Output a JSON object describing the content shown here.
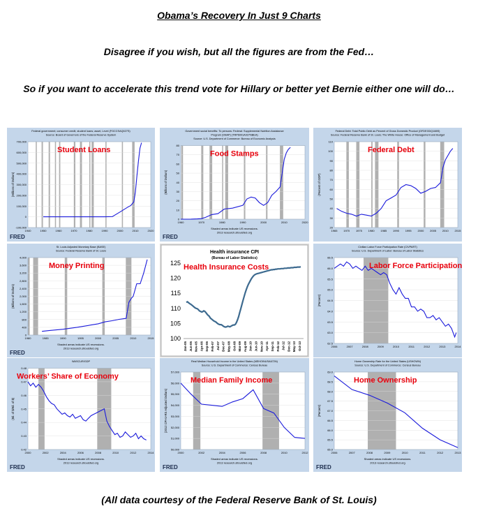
{
  "header": {
    "title": "Obama’s Recovery In Just 9 Charts",
    "line1": "Disagree if you wish, but all the figures are from the Fed…",
    "line2": "So if you want to accelerate this trend vote for Hillary or better yet Bernie either one will  do…"
  },
  "footer": "(All data courtesy of the Federal Reserve Bank of St. Louis)",
  "colors": {
    "line": "#1a1adb",
    "recession": "#b0b0b0",
    "annotation": "#e8000c",
    "panel_bg": "#c4d6ea",
    "plot_bg": "#ffffff",
    "hi_line": "#3d6a8f"
  },
  "chart_data": [
    {
      "type": "line",
      "id": "student-loans",
      "annotation": "Student Loans",
      "source": [
        "Federal government; consumer credit, student loans; asset, Level (FGCCSAQ027S)",
        "Source: Board of Governors of the Federal Reserve System"
      ],
      "ylabel": "(Millions of Dollars)",
      "ylim": [
        -100000,
        700000
      ],
      "yticks": [
        "-100,000",
        "0",
        "100,000",
        "200,000",
        "300,000",
        "400,000",
        "500,000",
        "600,000",
        "700,000"
      ],
      "xlim": [
        1940,
        2020
      ],
      "xticks": [
        "1940",
        "1950",
        "1960",
        "1970",
        "1980",
        "1990",
        "2000",
        "2010",
        "2020"
      ],
      "recessions": [
        [
          1945.1,
          1945.8
        ],
        [
          1948.9,
          1949.8
        ],
        [
          1953.5,
          1954.4
        ],
        [
          1957.6,
          1958.3
        ],
        [
          1960.3,
          1961.1
        ],
        [
          1969.9,
          1970.9
        ],
        [
          1973.9,
          1975.2
        ],
        [
          1980.0,
          1980.5
        ],
        [
          1981.5,
          1982.9
        ],
        [
          1990.5,
          1991.2
        ],
        [
          2001.2,
          2001.9
        ],
        [
          2007.9,
          2009.5
        ]
      ],
      "x": [
        1950,
        1960,
        1970,
        1980,
        1990,
        1995,
        2000,
        2005,
        2007,
        2009,
        2010,
        2011,
        2012,
        2013,
        2014
      ],
      "y": [
        0,
        0,
        0,
        0,
        0,
        2000,
        45000,
        90000,
        105000,
        140000,
        230000,
        380000,
        520000,
        640000,
        690000
      ],
      "footer_logo": "FRED",
      "notes": []
    },
    {
      "type": "line",
      "id": "food-stamps",
      "annotation": "Food Stamps",
      "source": [
        "Government social benefits: To persons: Federal: Supplemental Nutrition Assistance",
        "Program (SNAP) (TRP6001A027NBEA)",
        "Source: U.S. Department of Commerce: Bureau of Economic Analysis"
      ],
      "ylabel": "(Billions of Dollars)",
      "ylim": [
        0,
        80
      ],
      "yticks": [
        "0",
        "10",
        "20",
        "30",
        "40",
        "50",
        "60",
        "70",
        "80"
      ],
      "xlim": [
        1960,
        2020
      ],
      "xticks": [
        "1960",
        "1970",
        "1980",
        "1990",
        "2000",
        "2010",
        "2020"
      ],
      "recessions": [
        [
          1960.3,
          1961.1
        ],
        [
          1969.9,
          1970.9
        ],
        [
          1973.9,
          1975.2
        ],
        [
          1980.0,
          1980.5
        ],
        [
          1981.5,
          1982.9
        ],
        [
          1990.5,
          1991.2
        ],
        [
          2001.2,
          2001.9
        ],
        [
          2007.9,
          2009.5
        ]
      ],
      "x": [
        1960,
        1965,
        1968,
        1970,
        1972,
        1975,
        1978,
        1981,
        1985,
        1990,
        1992,
        1994,
        1996,
        1998,
        2000,
        2002,
        2004,
        2006,
        2008,
        2009,
        2010,
        2011,
        2012,
        2013
      ],
      "y": [
        0,
        0.1,
        0.3,
        0.6,
        2,
        5,
        6,
        11,
        12,
        15,
        22,
        24,
        23,
        18,
        15,
        18,
        26,
        30,
        35,
        50,
        65,
        72,
        76,
        78
      ],
      "footer_logo": "FRED",
      "notes": [
        "Shaded areas indicate US recessions.",
        "2013 research.stlouisfed.org"
      ]
    },
    {
      "type": "line",
      "id": "federal-debt",
      "annotation": "Federal Debt",
      "source": [
        "Federal Debt: Total Public Debt as Percent of Gross Domestic Product (GFDEGDQ188S)",
        "Source: Federal Reserve Bank of St. Louis; The White House: Office of Management and Budget"
      ],
      "ylabel": "(Percent of GDP)",
      "ylim": [
        20,
        110
      ],
      "yticks": [
        "20",
        "30",
        "40",
        "50",
        "60",
        "70",
        "80",
        "90",
        "100",
        "110"
      ],
      "xlim": [
        1965,
        2015
      ],
      "xticks": [
        "1965",
        "1970",
        "1975",
        "1980",
        "1985",
        "1990",
        "1995",
        "2000",
        "2005",
        "2010",
        "2015"
      ],
      "recessions": [
        [
          1969.9,
          1970.9
        ],
        [
          1973.9,
          1975.2
        ],
        [
          1980.0,
          1980.5
        ],
        [
          1981.5,
          1982.9
        ],
        [
          1990.5,
          1991.2
        ],
        [
          2001.2,
          2001.9
        ],
        [
          2007.9,
          2009.5
        ]
      ],
      "x": [
        1966,
        1968,
        1970,
        1972,
        1974,
        1976,
        1978,
        1980,
        1982,
        1984,
        1986,
        1988,
        1990,
        1992,
        1994,
        1996,
        1998,
        2000,
        2002,
        2004,
        2006,
        2008,
        2009,
        2010,
        2012,
        2013
      ],
      "y": [
        40,
        37,
        35,
        34,
        32,
        34,
        33,
        32,
        35,
        40,
        48,
        51,
        54,
        62,
        65,
        64,
        61,
        56,
        58,
        61,
        62,
        67,
        83,
        91,
        100,
        103
      ],
      "footer_logo": "",
      "notes": []
    },
    {
      "type": "line",
      "id": "money-printing",
      "annotation": "Money Printing",
      "source": [
        "St. Louis Adjusted Monetary Base (BASE)",
        "Source: Federal Reserve Bank of St. Louis"
      ],
      "ylabel": "(Billions of Dollars)",
      "ylim": [
        0,
        4000
      ],
      "yticks": [
        "0",
        "400",
        "800",
        "1,200",
        "1,600",
        "2,000",
        "2,400",
        "2,800",
        "3,200",
        "3,600",
        "4,000"
      ],
      "xlim": [
        1980,
        2015
      ],
      "xticks": [
        "1980",
        "1985",
        "1990",
        "1995",
        "2000",
        "2005",
        "2010",
        "2015"
      ],
      "recessions": [
        [
          1980.0,
          1980.5
        ],
        [
          1981.5,
          1982.9
        ],
        [
          1990.5,
          1991.2
        ],
        [
          2001.2,
          2001.9
        ],
        [
          2007.9,
          2009.5
        ]
      ],
      "x": [
        1984,
        1986,
        1990,
        1994,
        1998,
        2000,
        2002,
        2004,
        2006,
        2008,
        2008.8,
        2009.5,
        2010,
        2011,
        2012,
        2013,
        2014
      ],
      "y": [
        190,
        230,
        300,
        400,
        520,
        580,
        680,
        740,
        810,
        860,
        1700,
        1900,
        2000,
        2650,
        2650,
        3200,
        3900
      ],
      "footer_logo": "FRED",
      "notes": [
        "Shaded areas indicate US recessions.",
        "2013 research.stlouisfed.org"
      ]
    },
    {
      "type": "line",
      "id": "health-insurance",
      "annotation": "Health Insurance Costs",
      "chart_title": "Health insurance CPI",
      "chart_subtitle": "(Bureau of Labor Statistics)",
      "ylim": [
        100,
        125
      ],
      "yticks": [
        "100",
        "105",
        "110",
        "115",
        "120",
        "125"
      ],
      "xticks": [
        "Jan-05",
        "Jun-05",
        "Nov-05",
        "Apr-06",
        "Sep-06",
        "Feb-07",
        "Jul-07",
        "Dec-07",
        "May-08",
        "Oct-08",
        "Mar-09",
        "Aug-09",
        "Jan-10",
        "Jun-10",
        "Nov-10",
        "Apr-11",
        "Sep-11",
        "Feb-12",
        "Jul-12",
        "Dec-12",
        "May-13",
        "Oct-13"
      ],
      "x": [
        0,
        1,
        2,
        3,
        4,
        5,
        6,
        7,
        8,
        9,
        10,
        11,
        12,
        13,
        14,
        15,
        16,
        17,
        18,
        19,
        20,
        21,
        22,
        23,
        24,
        25,
        26,
        27,
        28,
        29,
        30,
        31,
        32,
        33,
        34,
        35,
        36,
        37,
        38,
        39,
        40,
        41,
        42,
        43,
        44,
        45,
        46,
        47,
        48,
        49,
        50,
        51,
        52,
        53,
        54,
        55,
        56,
        57,
        58,
        59,
        60,
        61,
        62,
        63,
        64,
        65,
        66,
        67,
        68,
        69,
        70,
        71,
        72,
        73,
        74,
        75,
        76,
        77,
        78,
        79,
        80,
        81,
        82,
        83,
        84,
        85,
        86,
        87,
        88,
        89,
        90,
        91,
        92,
        93,
        94,
        95,
        96,
        97,
        98,
        99,
        100,
        101,
        102,
        103,
        104,
        105
      ],
      "y": [
        112,
        112.2,
        111.9,
        111.6,
        111.4,
        111.1,
        110.8,
        110.5,
        110.2,
        110,
        109.9,
        109.6,
        109.2,
        109,
        108.8,
        108.9,
        109.2,
        109,
        108.6,
        108.1,
        107.7,
        107.4,
        106.8,
        106.5,
        106.2,
        105.9,
        105.7,
        105.5,
        105.2,
        104.9,
        104.7,
        104.6,
        104.6,
        104.4,
        104.1,
        103.9,
        103.8,
        103.9,
        104.1,
        104.0,
        103.9,
        104.1,
        104.3,
        104.5,
        104.5,
        104.7,
        105.3,
        106.2,
        107.3,
        108.6,
        109.9,
        111.3,
        112.6,
        113.9,
        115.1,
        116.2,
        117.2,
        118.0,
        118.7,
        119.4,
        120.0,
        120.5,
        120.9,
        121.2,
        121.4,
        121.5,
        121.6,
        121.7,
        121.8,
        121.9,
        122.0,
        122.1,
        122.2,
        122.3,
        122.4,
        122.5,
        122.6,
        122.7,
        122.8,
        122.8,
        122.9,
        122.9,
        123.0,
        123.0,
        123.1,
        123.1,
        123.1,
        123.2,
        123.2,
        123.2,
        123.3,
        123.3,
        123.3,
        123.4,
        123.4,
        123.4,
        123.5,
        123.5,
        123.5,
        123.6,
        123.6,
        123.6,
        123.7,
        123.7,
        123.7,
        123.8
      ],
      "footer_logo": "",
      "notes": []
    },
    {
      "type": "line",
      "id": "labor-force",
      "annotation": "Labor Force Participation",
      "source": [
        "Civilian Labor Force Participation Rate (CIVPART)",
        "Source: U.S. Department of Labor: Bureau of Labor Statistics"
      ],
      "ylabel": "(Percent)",
      "ylim": [
        62.5,
        66.5
      ],
      "yticks": [
        "62.5",
        "63.0",
        "63.5",
        "64.0",
        "64.5",
        "65.0",
        "65.5",
        "66.0",
        "66.5"
      ],
      "xlim": [
        2006,
        2014
      ],
      "xticks": [
        "2006",
        "2007",
        "2008",
        "2009",
        "2010",
        "2011",
        "2012",
        "2013",
        "2014"
      ],
      "recessions": [
        [
          2007.9,
          2009.5
        ]
      ],
      "x": [
        2006.0,
        2006.2,
        2006.4,
        2006.6,
        2006.8,
        2007.0,
        2007.2,
        2007.4,
        2007.6,
        2007.8,
        2008.0,
        2008.2,
        2008.4,
        2008.6,
        2008.8,
        2009.0,
        2009.2,
        2009.4,
        2009.6,
        2009.8,
        2010.0,
        2010.2,
        2010.4,
        2010.6,
        2010.8,
        2011.0,
        2011.2,
        2011.4,
        2011.6,
        2011.8,
        2012.0,
        2012.2,
        2012.4,
        2012.6,
        2012.8,
        2013.0,
        2013.2,
        2013.4,
        2013.6,
        2013.8,
        2013.9
      ],
      "y": [
        66.0,
        66.1,
        66.2,
        66.1,
        66.3,
        66.2,
        66.0,
        66.1,
        66.0,
        65.9,
        66.1,
        65.9,
        66.0,
        65.9,
        65.8,
        65.7,
        65.8,
        65.7,
        65.3,
        65.0,
        64.8,
        65.1,
        64.8,
        64.6,
        64.6,
        64.2,
        64.2,
        64.0,
        64.1,
        64.0,
        63.7,
        63.7,
        63.8,
        63.6,
        63.7,
        63.5,
        63.3,
        63.4,
        63.2,
        62.8,
        63.0
      ],
      "footer_logo": "",
      "notes": []
    },
    {
      "type": "line",
      "id": "workers-share",
      "annotation": "Workers’ Share of Economy",
      "source": [
        "WASCUR/GDP"
      ],
      "ylabel": "(Bil. of $/Bil. of $)",
      "ylim": [
        0.42,
        0.48
      ],
      "yticks": [
        "0.42",
        "0.43",
        "0.44",
        "0.45",
        "0.46",
        "0.47",
        "0.48"
      ],
      "xlim": [
        2000,
        2014
      ],
      "xticks": [
        "2000",
        "2002",
        "2004",
        "2006",
        "2008",
        "2010",
        "2012",
        "2014"
      ],
      "recessions": [
        [
          2001.2,
          2001.9
        ],
        [
          2007.9,
          2009.5
        ]
      ],
      "x": [
        2000.0,
        2000.3,
        2000.6,
        2000.9,
        2001.2,
        2001.5,
        2001.8,
        2002.1,
        2002.4,
        2002.7,
        2003.0,
        2003.3,
        2003.6,
        2003.9,
        2004.2,
        2004.5,
        2004.8,
        2005.1,
        2005.4,
        2005.7,
        2006.0,
        2006.3,
        2006.6,
        2006.9,
        2007.2,
        2007.5,
        2007.8,
        2008.1,
        2008.4,
        2008.7,
        2009.0,
        2009.3,
        2009.6,
        2009.9,
        2010.2,
        2010.5,
        2010.8,
        2011.1,
        2011.4,
        2011.7,
        2012.0,
        2012.3,
        2012.6,
        2012.9,
        2013.2,
        2013.5
      ],
      "y": [
        0.47,
        0.467,
        0.469,
        0.466,
        0.468,
        0.466,
        0.463,
        0.459,
        0.456,
        0.454,
        0.453,
        0.45,
        0.448,
        0.446,
        0.447,
        0.445,
        0.444,
        0.446,
        0.443,
        0.444,
        0.445,
        0.442,
        0.441,
        0.443,
        0.445,
        0.446,
        0.447,
        0.448,
        0.449,
        0.45,
        0.441,
        0.437,
        0.434,
        0.431,
        0.432,
        0.429,
        0.43,
        0.433,
        0.431,
        0.429,
        0.43,
        0.432,
        0.428,
        0.43,
        0.428,
        0.427
      ],
      "footer_logo": "FRED",
      "notes": [
        "Shaded areas indicate US recessions.",
        "2013 research.stlouisfed.org"
      ]
    },
    {
      "type": "line",
      "id": "median-income",
      "annotation": "Median Family Income",
      "source": [
        "Real Median Household Income in the United States (MEHOINUSA672N)",
        "Source: U.S. Department of Commerce: Census Bureau"
      ],
      "ylabel": "(2012 CPI-U-RS Adjusted Dollars)",
      "ylim": [
        50000,
        57000
      ],
      "yticks": [
        "50,000",
        "51,000",
        "52,000",
        "53,000",
        "54,000",
        "55,000",
        "56,000",
        "57,000"
      ],
      "xlim": [
        2000,
        2012
      ],
      "xticks": [
        "2000",
        "2002",
        "2004",
        "2006",
        "2008",
        "2010",
        "2012"
      ],
      "recessions": [
        [
          2001.2,
          2001.9
        ],
        [
          2007.9,
          2009.5
        ]
      ],
      "x": [
        2000,
        2001,
        2002,
        2003,
        2004,
        2005,
        2006,
        2007,
        2008,
        2009,
        2010,
        2011,
        2012
      ],
      "y": [
        56000,
        55000,
        54100,
        54000,
        53900,
        54300,
        54600,
        55400,
        53700,
        53300,
        52000,
        51100,
        51000
      ],
      "footer_logo": "FRED",
      "notes": [
        "Shaded areas indicate US recessions.",
        "2013 research.stlouisfed.org"
      ]
    },
    {
      "type": "line",
      "id": "home-ownership",
      "annotation": "Home Ownership",
      "source": [
        "Home Ownership Rate for the United States (USHOWN)",
        "Source: U.S. Department of Commerce: Census Bureau"
      ],
      "ylabel": "(Percent)",
      "ylim": [
        65.0,
        69.0
      ],
      "yticks": [
        "65.0",
        "65.5",
        "66.0",
        "66.5",
        "67.0",
        "67.5",
        "68.0",
        "68.5",
        "69.0"
      ],
      "xlim": [
        2006,
        2013
      ],
      "xticks": [
        "2006",
        "2007",
        "2008",
        "2009",
        "2010",
        "2011",
        "2012",
        "2013"
      ],
      "recessions": [
        [
          2007.9,
          2009.5
        ]
      ],
      "x": [
        2006,
        2007,
        2008,
        2009,
        2010,
        2011,
        2012,
        2013
      ],
      "y": [
        68.8,
        68.1,
        67.8,
        67.4,
        66.9,
        66.1,
        65.5,
        65.1
      ],
      "footer_logo": "FRED",
      "notes": [
        "Shaded areas indicate US recessions.",
        "2013 research.stlouisfed.org"
      ]
    }
  ]
}
